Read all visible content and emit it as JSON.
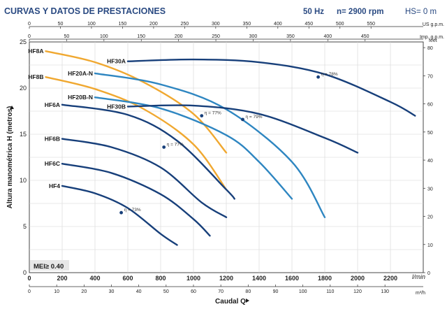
{
  "header": {
    "title": "CURVAS Y DATOS DE PRESTACIONES",
    "freq": "50 Hz",
    "speed": "n= 2900 rpm",
    "hs": "HS= 0 m"
  },
  "colors": {
    "title": "#2a4a82",
    "dark_blue": "#173f7a",
    "light_blue": "#2e86c1",
    "orange": "#f0a830"
  },
  "chart_data": {
    "type": "line",
    "xlabel": "Caudal Q",
    "ylabel": "Altura manométrica H (metros)",
    "mei": "MEI≥ 0.40",
    "x_range": [
      0,
      2400
    ],
    "y_range": [
      0,
      25
    ],
    "x_ticks": [
      0,
      200,
      400,
      600,
      800,
      1000,
      1200,
      1400,
      1600,
      1800,
      2000,
      2200
    ],
    "x_unit": "l/min",
    "y_ticks": [
      0,
      5,
      10,
      15,
      20,
      25
    ],
    "right_axis": {
      "unit": "feet",
      "ticks": [
        0,
        10,
        20,
        30,
        40,
        50,
        60,
        70,
        80
      ]
    },
    "top_axis_1": {
      "unit": "US g.p.m.",
      "ticks": [
        0,
        50,
        100,
        150,
        200,
        250,
        300,
        350,
        400,
        450,
        500,
        550
      ]
    },
    "top_axis_2": {
      "unit": "Imp. g.p.m.",
      "ticks": [
        0,
        50,
        100,
        150,
        200,
        250,
        300,
        350,
        400,
        450
      ]
    },
    "bottom_axis_2": {
      "unit": "m³/h",
      "ticks": [
        0,
        10,
        20,
        30,
        40,
        50,
        60,
        70,
        80,
        90,
        100,
        110,
        120,
        130
      ]
    },
    "series": [
      {
        "name": "HF8A",
        "color": "orange",
        "points": [
          [
            100,
            24.0
          ],
          [
            400,
            22.8
          ],
          [
            700,
            20.6
          ],
          [
            1000,
            17.2
          ],
          [
            1200,
            13.0
          ]
        ]
      },
      {
        "name": "HF8B",
        "color": "orange",
        "points": [
          [
            100,
            21.2
          ],
          [
            400,
            19.9
          ],
          [
            700,
            17.7
          ],
          [
            1000,
            13.9
          ],
          [
            1200,
            9.0
          ]
        ]
      },
      {
        "name": "HF30A",
        "color": "dark_blue",
        "points": [
          [
            600,
            22.9
          ],
          [
            1000,
            23.1
          ],
          [
            1400,
            22.8
          ],
          [
            1800,
            21.5
          ],
          [
            2200,
            18.5
          ],
          [
            2350,
            17.0
          ]
        ]
      },
      {
        "name": "HF20A-N",
        "color": "light_blue",
        "points": [
          [
            400,
            21.6
          ],
          [
            800,
            20.4
          ],
          [
            1200,
            17.7
          ],
          [
            1600,
            12.0
          ],
          [
            1800,
            6.0
          ]
        ]
      },
      {
        "name": "HF20B-N",
        "color": "light_blue",
        "points": [
          [
            400,
            19.0
          ],
          [
            800,
            17.8
          ],
          [
            1200,
            14.9
          ],
          [
            1400,
            12.0
          ],
          [
            1600,
            8.0
          ]
        ]
      },
      {
        "name": "HF30B",
        "color": "dark_blue",
        "points": [
          [
            600,
            18.0
          ],
          [
            1000,
            18.1
          ],
          [
            1400,
            17.2
          ],
          [
            1800,
            14.6
          ],
          [
            2000,
            13.0
          ]
        ]
      },
      {
        "name": "HF6A",
        "color": "dark_blue",
        "points": [
          [
            200,
            18.2
          ],
          [
            600,
            17.1
          ],
          [
            900,
            14.3
          ],
          [
            1200,
            9.0
          ],
          [
            1250,
            8.0
          ]
        ]
      },
      {
        "name": "HF6B",
        "color": "dark_blue",
        "points": [
          [
            200,
            14.5
          ],
          [
            500,
            13.6
          ],
          [
            800,
            11.4
          ],
          [
            1050,
            7.6
          ],
          [
            1200,
            6.0
          ]
        ]
      },
      {
        "name": "HF6C",
        "color": "dark_blue",
        "points": [
          [
            200,
            11.8
          ],
          [
            500,
            10.8
          ],
          [
            800,
            8.5
          ],
          [
            1000,
            5.8
          ],
          [
            1100,
            4.0
          ]
        ]
      },
      {
        "name": "HF4",
        "color": "dark_blue",
        "points": [
          [
            200,
            9.4
          ],
          [
            400,
            8.6
          ],
          [
            600,
            7.0
          ],
          [
            800,
            4.2
          ],
          [
            900,
            3.0
          ]
        ]
      }
    ],
    "efficiency_points": [
      {
        "x": 1760,
        "y": 21.2,
        "label": "η = 78%"
      },
      {
        "x": 1300,
        "y": 16.6,
        "label": "η = 79%"
      },
      {
        "x": 1050,
        "y": 17.0,
        "label": "η = 77%"
      },
      {
        "x": 820,
        "y": 13.6,
        "label": "η = 77%"
      },
      {
        "x": 560,
        "y": 6.5,
        "label": "η = 73%"
      }
    ]
  }
}
